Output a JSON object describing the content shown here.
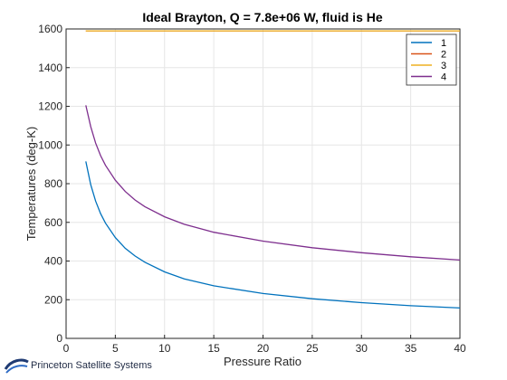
{
  "chart_data": {
    "type": "line",
    "title": "Ideal Brayton, Q = 7.8e+06 W, fluid is He",
    "xlabel": "Pressure Ratio",
    "ylabel": "Temperatures (deg-K)",
    "xlim": [
      0,
      40
    ],
    "ylim": [
      0,
      1600
    ],
    "xticks": [
      0,
      5,
      10,
      15,
      20,
      25,
      30,
      35,
      40
    ],
    "yticks": [
      0,
      200,
      400,
      600,
      800,
      1000,
      1200,
      1400,
      1600
    ],
    "grid": true,
    "legend_position": "top-right",
    "x": [
      2,
      2.5,
      3,
      3.5,
      4,
      5,
      6,
      7,
      8,
      10,
      12,
      15,
      20,
      25,
      30,
      35,
      40
    ],
    "series": [
      {
        "name": "1",
        "color": "#0072BD",
        "values": [
          915,
          795,
          710,
          645,
          596,
          521,
          466,
          426,
          394,
          344,
          308,
          272,
          232,
          205,
          185,
          169,
          157
        ]
      },
      {
        "name": "2",
        "color": "#D95319",
        "values": [
          1590,
          1590,
          1590,
          1590,
          1590,
          1590,
          1590,
          1590,
          1590,
          1590,
          1590,
          1590,
          1590,
          1590,
          1590,
          1590,
          1590
        ]
      },
      {
        "name": "3",
        "color": "#EDB120",
        "values": [
          1590,
          1590,
          1590,
          1590,
          1590,
          1590,
          1590,
          1590,
          1590,
          1590,
          1590,
          1590,
          1590,
          1590,
          1590,
          1590,
          1590
        ]
      },
      {
        "name": "4",
        "color": "#7E2F8E",
        "values": [
          1205,
          1095,
          1010,
          945,
          895,
          818,
          760,
          716,
          681,
          629,
          590,
          549,
          503,
          469,
          443,
          422,
          405
        ]
      }
    ]
  },
  "logo": {
    "text": "Princeton Satellite Systems",
    "icon": "princeton-satellite-logo-icon"
  }
}
